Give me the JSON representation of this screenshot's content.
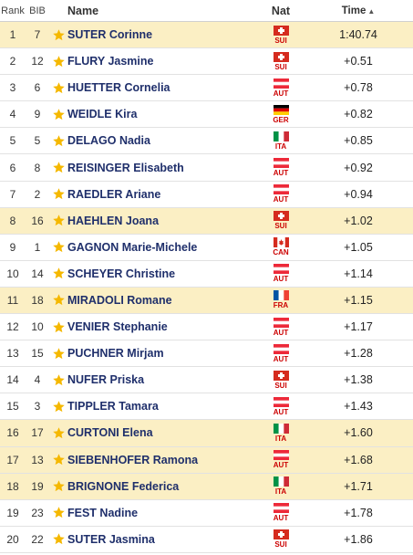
{
  "header": {
    "rank": "Rank",
    "bib": "BIB",
    "name": "Name",
    "nat": "Nat",
    "time": "Time"
  },
  "rows": [
    {
      "rank": "1",
      "bib": "7",
      "name": "SUTER Corinne",
      "nat": "SUI",
      "time": "1:40.74",
      "fav": true
    },
    {
      "rank": "2",
      "bib": "12",
      "name": "FLURY Jasmine",
      "nat": "SUI",
      "time": "+0.51",
      "fav": false
    },
    {
      "rank": "3",
      "bib": "6",
      "name": "HUETTER Cornelia",
      "nat": "AUT",
      "time": "+0.78",
      "fav": false
    },
    {
      "rank": "4",
      "bib": "9",
      "name": "WEIDLE Kira",
      "nat": "GER",
      "time": "+0.82",
      "fav": false
    },
    {
      "rank": "5",
      "bib": "5",
      "name": "DELAGO Nadia",
      "nat": "ITA",
      "time": "+0.85",
      "fav": false
    },
    {
      "rank": "6",
      "bib": "8",
      "name": "REISINGER Elisabeth",
      "nat": "AUT",
      "time": "+0.92",
      "fav": false
    },
    {
      "rank": "7",
      "bib": "2",
      "name": "RAEDLER Ariane",
      "nat": "AUT",
      "time": "+0.94",
      "fav": false
    },
    {
      "rank": "8",
      "bib": "16",
      "name": "HAEHLEN Joana",
      "nat": "SUI",
      "time": "+1.02",
      "fav": true
    },
    {
      "rank": "9",
      "bib": "1",
      "name": "GAGNON Marie-Michele",
      "nat": "CAN",
      "time": "+1.05",
      "fav": false
    },
    {
      "rank": "10",
      "bib": "14",
      "name": "SCHEYER Christine",
      "nat": "AUT",
      "time": "+1.14",
      "fav": false
    },
    {
      "rank": "11",
      "bib": "18",
      "name": "MIRADOLI Romane",
      "nat": "FRA",
      "time": "+1.15",
      "fav": true
    },
    {
      "rank": "12",
      "bib": "10",
      "name": "VENIER Stephanie",
      "nat": "AUT",
      "time": "+1.17",
      "fav": false
    },
    {
      "rank": "13",
      "bib": "15",
      "name": "PUCHNER Mirjam",
      "nat": "AUT",
      "time": "+1.28",
      "fav": false
    },
    {
      "rank": "14",
      "bib": "4",
      "name": "NUFER Priska",
      "nat": "SUI",
      "time": "+1.38",
      "fav": false
    },
    {
      "rank": "15",
      "bib": "3",
      "name": "TIPPLER Tamara",
      "nat": "AUT",
      "time": "+1.43",
      "fav": false
    },
    {
      "rank": "16",
      "bib": "17",
      "name": "CURTONI Elena",
      "nat": "ITA",
      "time": "+1.60",
      "fav": true
    },
    {
      "rank": "17",
      "bib": "13",
      "name": "SIEBENHOFER Ramona",
      "nat": "AUT",
      "time": "+1.68",
      "fav": true
    },
    {
      "rank": "18",
      "bib": "19",
      "name": "BRIGNONE Federica",
      "nat": "ITA",
      "time": "+1.71",
      "fav": true
    },
    {
      "rank": "19",
      "bib": "23",
      "name": "FEST Nadine",
      "nat": "AUT",
      "time": "+1.78",
      "fav": false
    },
    {
      "rank": "20",
      "bib": "22",
      "name": "SUTER Jasmina",
      "nat": "SUI",
      "time": "+1.86",
      "fav": false
    }
  ],
  "icons": {
    "star": "star-icon",
    "sort": "sort-asc-icon"
  },
  "colors": {
    "favorite_row": "#fbefc4",
    "star": "#f5b800",
    "name_text": "#1f2f6b",
    "nat_code": "#cc0000"
  }
}
